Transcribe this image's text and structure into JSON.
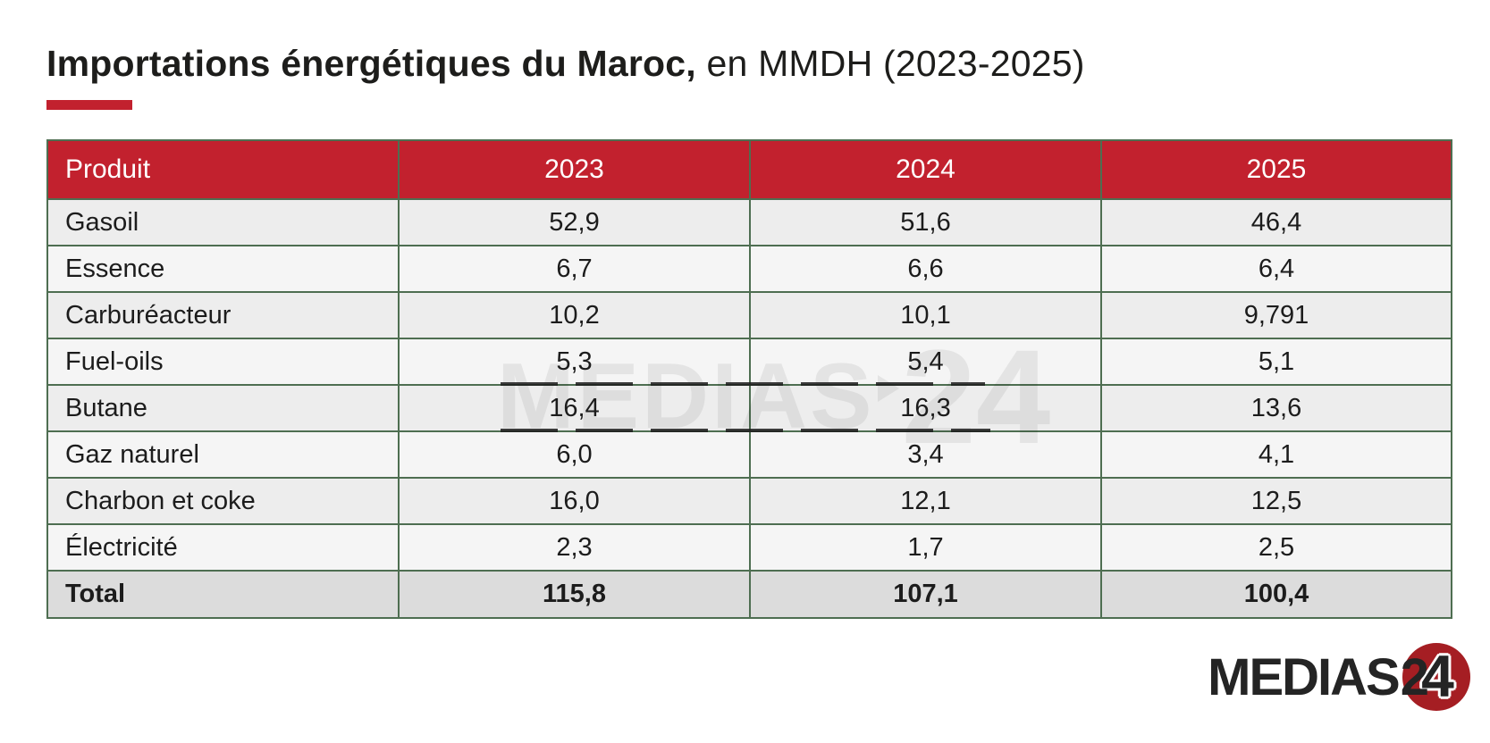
{
  "title": {
    "bold": "Importations énergétiques du Maroc,",
    "regular": " en MMDH (2023-2025)"
  },
  "colors": {
    "accent_red": "#c2212e",
    "logo_red": "#a51e23",
    "border_green": "#4e6e51",
    "row_odd": "#ededed",
    "row_even": "#f5f5f5",
    "total_row": "#dcdcdc",
    "header_text": "#ffffff",
    "body_text": "#1c1c1c",
    "watermark_gray": "#e3e3e3"
  },
  "table": {
    "columns": [
      "Produit",
      "2023",
      "2024",
      "2025"
    ],
    "rows": [
      {
        "label": "Gasoil",
        "values": [
          "52,9",
          "51,6",
          "46,4"
        ]
      },
      {
        "label": "Essence",
        "values": [
          "6,7",
          "6,6",
          "6,4"
        ]
      },
      {
        "label": "Carburéacteur",
        "values": [
          "10,2",
          "10,1",
          "9,791"
        ]
      },
      {
        "label": "Fuel-oils",
        "values": [
          "5,3",
          "5,4",
          "5,1"
        ]
      },
      {
        "label": "Butane",
        "values": [
          "16,4",
          "16,3",
          "13,6"
        ]
      },
      {
        "label": "Gaz naturel",
        "values": [
          "6,0",
          "3,4",
          "4,1"
        ]
      },
      {
        "label": "Charbon et coke",
        "values": [
          "16,0",
          "12,1",
          "12,5"
        ]
      },
      {
        "label": "Électricité",
        "values": [
          "2,3",
          "1,7",
          "2,5"
        ]
      }
    ],
    "total": {
      "label": "Total",
      "values": [
        "115,8",
        "107,1",
        "100,4"
      ]
    }
  },
  "watermark": {
    "text_main": "MEDIAS",
    "text_number": "24"
  },
  "logo": {
    "wordmark": "MEDIAS",
    "digit_2": "2",
    "digit_4": "4"
  },
  "chart_data": {
    "type": "table",
    "title": "Importations énergétiques du Maroc, en MMDH (2023-2025)",
    "unit": "MMDH",
    "categories": [
      "2023",
      "2024",
      "2025"
    ],
    "series": [
      {
        "name": "Gasoil",
        "values": [
          52.9,
          51.6,
          46.4
        ]
      },
      {
        "name": "Essence",
        "values": [
          6.7,
          6.6,
          6.4
        ]
      },
      {
        "name": "Carburéacteur",
        "values": [
          10.2,
          10.1,
          9.791
        ]
      },
      {
        "name": "Fuel-oils",
        "values": [
          5.3,
          5.4,
          5.1
        ]
      },
      {
        "name": "Butane",
        "values": [
          16.4,
          16.3,
          13.6
        ]
      },
      {
        "name": "Gaz naturel",
        "values": [
          6.0,
          3.4,
          4.1
        ]
      },
      {
        "name": "Charbon et coke",
        "values": [
          16.0,
          12.1,
          12.5
        ]
      },
      {
        "name": "Électricité",
        "values": [
          2.3,
          1.7,
          2.5
        ]
      },
      {
        "name": "Total",
        "values": [
          115.8,
          107.1,
          100.4
        ]
      }
    ]
  }
}
